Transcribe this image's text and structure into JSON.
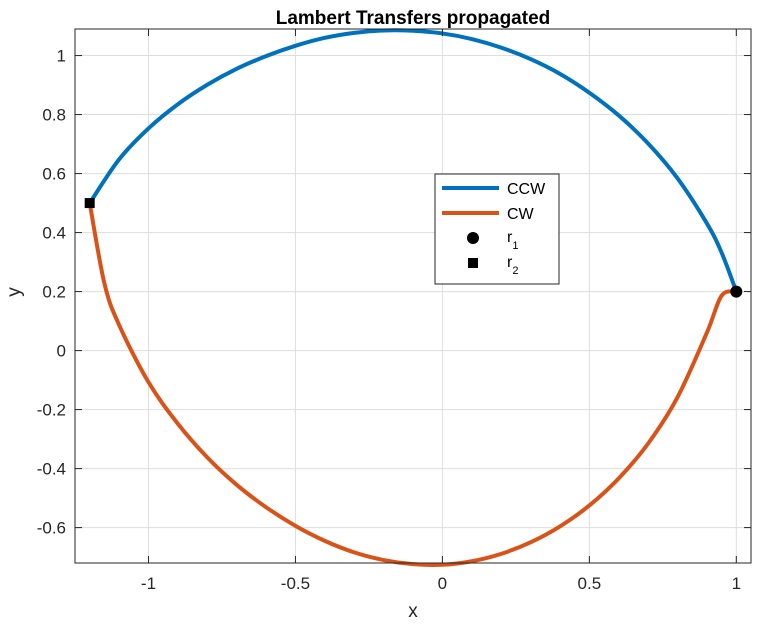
{
  "chart_data": {
    "type": "line",
    "title": "Lambert Transfers propagated",
    "xlabel": "x",
    "ylabel": "y",
    "xlim": [
      -1.25,
      1.05
    ],
    "ylim": [
      -0.72,
      1.09
    ],
    "xticks": [
      -1,
      -0.5,
      0,
      0.5,
      1
    ],
    "xtick_labels": [
      "-1",
      "-0.5",
      "0",
      "0.5",
      "1"
    ],
    "yticks": [
      -0.6,
      -0.4,
      -0.2,
      0,
      0.2,
      0.4,
      0.6,
      0.8,
      1
    ],
    "ytick_labels": [
      "-0.6",
      "-0.4",
      "-0.2",
      "0",
      "0.2",
      "0.4",
      "0.6",
      "0.8",
      "1"
    ],
    "grid": true,
    "legend_position": "center-right",
    "series": [
      {
        "name": "CCW",
        "color": "#0072BD",
        "x": [
          -1.2,
          -1.1,
          -1.0,
          -0.9,
          -0.8,
          -0.7,
          -0.6,
          -0.5,
          -0.4,
          -0.3,
          -0.2,
          -0.1,
          0.0,
          0.1,
          0.2,
          0.3,
          0.4,
          0.5,
          0.6,
          0.7,
          0.8,
          0.9,
          0.95,
          1.0
        ],
        "y": [
          0.5,
          0.648,
          0.753,
          0.835,
          0.901,
          0.955,
          0.998,
          1.033,
          1.06,
          1.077,
          1.085,
          1.084,
          1.075,
          1.056,
          1.027,
          0.988,
          0.938,
          0.874,
          0.797,
          0.702,
          0.584,
          0.431,
          0.332,
          0.2
        ]
      },
      {
        "name": "CW",
        "color": "#D95319",
        "x": [
          -1.2,
          -1.15,
          -1.1,
          -1.0,
          -0.9,
          -0.8,
          -0.7,
          -0.6,
          -0.5,
          -0.4,
          -0.3,
          -0.2,
          -0.1,
          0.0,
          0.1,
          0.2,
          0.3,
          0.4,
          0.5,
          0.6,
          0.7,
          0.8,
          0.9,
          0.95,
          1.0
        ],
        "y": [
          0.5,
          0.228,
          0.087,
          -0.107,
          -0.248,
          -0.362,
          -0.455,
          -0.531,
          -0.594,
          -0.645,
          -0.684,
          -0.71,
          -0.724,
          -0.726,
          -0.714,
          -0.689,
          -0.65,
          -0.596,
          -0.525,
          -0.433,
          -0.315,
          -0.158,
          0.061,
          0.186,
          0.2
        ]
      },
      {
        "name": "r_1",
        "legend_label": "r",
        "legend_sub": "1",
        "color": "#000000",
        "marker": "circle",
        "x": [
          1.0
        ],
        "y": [
          0.2
        ]
      },
      {
        "name": "r_2",
        "legend_label": "r",
        "legend_sub": "2",
        "color": "#000000",
        "marker": "square",
        "x": [
          -1.2
        ],
        "y": [
          0.5
        ]
      }
    ]
  }
}
